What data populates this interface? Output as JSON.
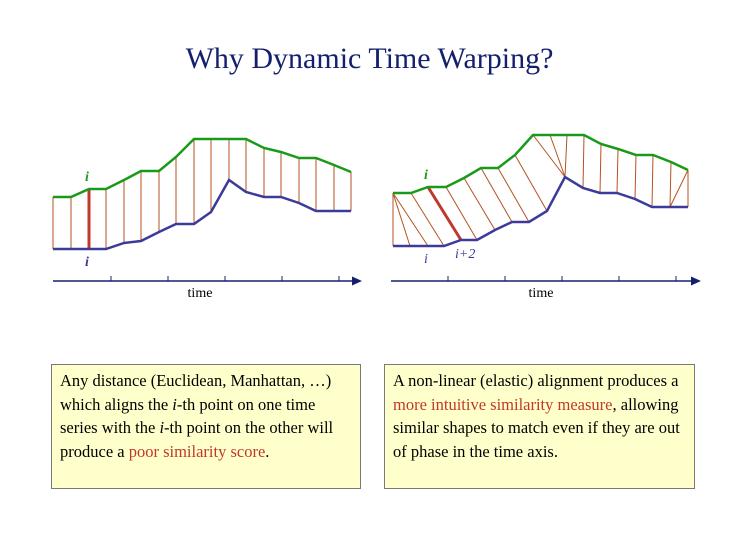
{
  "title": "Why Dynamic Time Warping?",
  "left_figure": {
    "top_label": "i",
    "bottom_label": "i",
    "axis_label": "time"
  },
  "right_figure": {
    "top_label": "i",
    "bottom_label": "i",
    "bottom_label_next": "i+2",
    "axis_label": "time"
  },
  "left_box": {
    "p1": "Any distance (Euclidean, Manhattan, …) which aligns the ",
    "i1": "i",
    "p2": "-th point on one time series with the ",
    "i2": "i",
    "p3": "-th point on the other will produce a ",
    "hl": "poor similarity score",
    "p4": "."
  },
  "right_box": {
    "p1": "A non-linear (elastic) alignment produces a ",
    "hl": "more intuitive similarity measure",
    "p2": ", allowing similar shapes to match even if they are out of phase in the time axis."
  },
  "colors": {
    "title": "#14206e",
    "top_series": "#1a9a1a",
    "bottom_series": "#3b3b9a",
    "links": "#b5521f",
    "highlight_link": "#c0392b",
    "box_fill": "#ffffcc"
  }
}
